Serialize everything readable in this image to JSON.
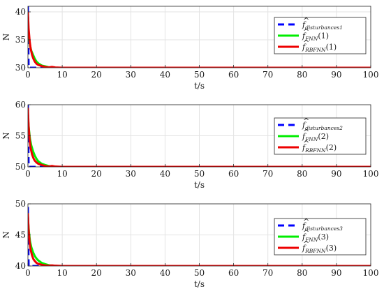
{
  "chart_data": [
    {
      "type": "line",
      "xlabel": "t/s",
      "ylabel": "N",
      "xlim": [
        0,
        100
      ],
      "ylim": [
        30,
        41
      ],
      "xticks": [
        0,
        10,
        20,
        30,
        40,
        50,
        60,
        70,
        80,
        90,
        100
      ],
      "yticks": [
        30,
        35,
        40
      ],
      "grid": true,
      "legend_position": "top-right",
      "series": [
        {
          "legend_main": "f",
          "legend_sub": "disturbances1",
          "legend_arg": "",
          "color": "#0000ff",
          "dashed": true,
          "x": [
            0,
            0.2,
            100
          ],
          "y": [
            41,
            30,
            30
          ]
        },
        {
          "legend_main": "f",
          "legend_sub": "FNN",
          "legend_arg": "(1)",
          "color": "#00ee00",
          "dashed": false,
          "x": [
            0,
            0.3,
            0.6,
            1,
            1.5,
            2,
            2.5,
            3,
            3.5,
            4,
            5,
            6,
            7,
            8,
            100
          ],
          "y": [
            38,
            35.5,
            34,
            33,
            32.3,
            31.6,
            31.1,
            30.8,
            30.6,
            30.4,
            30.25,
            30.1,
            30.05,
            30,
            30
          ]
        },
        {
          "legend_main": "f",
          "legend_sub": "RBFNN",
          "legend_arg": "(1)",
          "color": "#ee0000",
          "dashed": false,
          "x": [
            0,
            0.2,
            0.5,
            0.8,
            1.2,
            1.6,
            2,
            2.5,
            3,
            4,
            5,
            6,
            7,
            8,
            10,
            100
          ],
          "y": [
            40,
            37,
            34.8,
            33.4,
            32.3,
            31.6,
            31.1,
            30.7,
            30.5,
            30.3,
            30.15,
            30.05,
            30.15,
            30.05,
            30,
            30
          ]
        }
      ]
    },
    {
      "type": "line",
      "xlabel": "t/s",
      "ylabel": "N",
      "xlim": [
        0,
        100
      ],
      "ylim": [
        50,
        60
      ],
      "xticks": [
        0,
        10,
        20,
        30,
        40,
        50,
        60,
        70,
        80,
        90,
        100
      ],
      "yticks": [
        50,
        55,
        60
      ],
      "grid": true,
      "legend_position": "right",
      "series": [
        {
          "legend_main": "f",
          "legend_sub": "disturbances2",
          "legend_arg": "",
          "color": "#0000ff",
          "dashed": true,
          "x": [
            0,
            0.2,
            100
          ],
          "y": [
            60,
            50,
            50
          ]
        },
        {
          "legend_main": "f",
          "legend_sub": "FNN",
          "legend_arg": "(2)",
          "color": "#00ee00",
          "dashed": false,
          "x": [
            0,
            0.3,
            0.6,
            1,
            1.5,
            2,
            2.5,
            3,
            3.5,
            4,
            5,
            6,
            7,
            8,
            100
          ],
          "y": [
            58,
            56,
            54.5,
            53.4,
            52.5,
            51.8,
            51.3,
            50.9,
            50.7,
            50.5,
            50.3,
            50.15,
            50.05,
            50,
            50
          ]
        },
        {
          "legend_main": "f",
          "legend_sub": "RBFNN",
          "legend_arg": "(2)",
          "color": "#ee0000",
          "dashed": false,
          "x": [
            0,
            0.2,
            0.5,
            0.8,
            1.2,
            1.6,
            2,
            2.5,
            3,
            4,
            5,
            6,
            7,
            8,
            10,
            100
          ],
          "y": [
            59.5,
            56.5,
            54.3,
            53,
            52,
            51.4,
            51,
            50.7,
            50.5,
            50.3,
            50.15,
            50.05,
            50.15,
            50.05,
            50,
            50
          ]
        }
      ]
    },
    {
      "type": "line",
      "xlabel": "t/s",
      "ylabel": "N",
      "xlim": [
        0,
        100
      ],
      "ylim": [
        40,
        50
      ],
      "xticks": [
        0,
        10,
        20,
        30,
        40,
        50,
        60,
        70,
        80,
        90,
        100
      ],
      "yticks": [
        40,
        45,
        50
      ],
      "grid": true,
      "legend_position": "right",
      "series": [
        {
          "legend_main": "f",
          "legend_sub": "disturbances3",
          "legend_arg": "",
          "color": "#0000ff",
          "dashed": true,
          "x": [
            0,
            0.2,
            100
          ],
          "y": [
            49.5,
            40,
            40
          ]
        },
        {
          "legend_main": "f",
          "legend_sub": "FNN",
          "legend_arg": "(3)",
          "color": "#00ee00",
          "dashed": false,
          "x": [
            0,
            0.3,
            0.6,
            1,
            1.5,
            2,
            2.5,
            3,
            3.5,
            4,
            5,
            6,
            7,
            8,
            100
          ],
          "y": [
            47.5,
            45.5,
            44,
            43,
            42.2,
            41.6,
            41.2,
            40.9,
            40.7,
            40.5,
            40.3,
            40.15,
            40.05,
            40,
            40
          ]
        },
        {
          "legend_main": "f",
          "legend_sub": "RBFNN",
          "legend_arg": "(3)",
          "color": "#ee0000",
          "dashed": false,
          "x": [
            0,
            0.2,
            0.5,
            0.8,
            1.2,
            1.6,
            2,
            2.5,
            3,
            4,
            5,
            6,
            7,
            8,
            10,
            100
          ],
          "y": [
            48.5,
            45.8,
            43.8,
            42.6,
            41.7,
            41.1,
            40.8,
            40.5,
            40.35,
            40.2,
            40.1,
            40.05,
            40.1,
            40.05,
            40,
            40
          ]
        }
      ]
    }
  ]
}
